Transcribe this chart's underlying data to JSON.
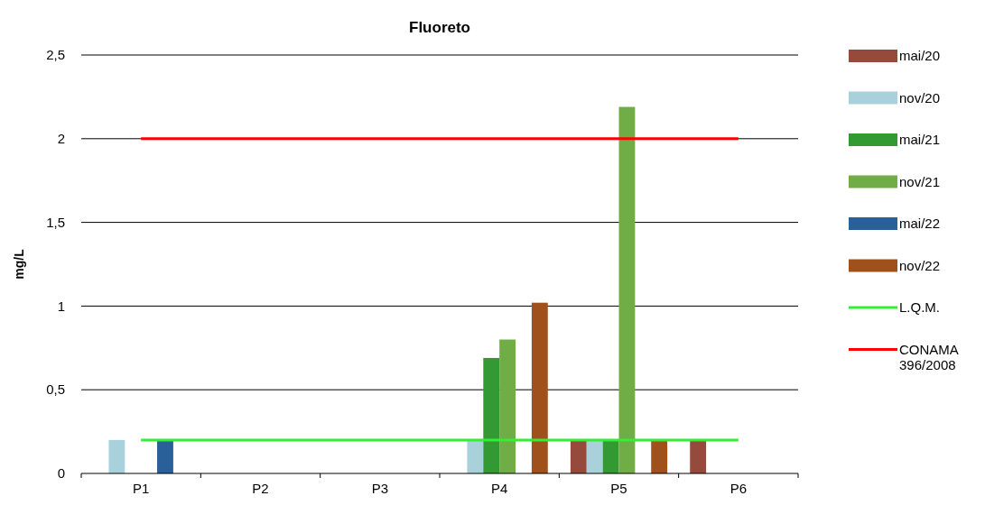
{
  "chart_data": {
    "type": "bar",
    "title": "Fluoreto",
    "ylabel": "mg/L",
    "categories": [
      "P1",
      "P2",
      "P3",
      "P4",
      "P5",
      "P6"
    ],
    "series": [
      {
        "name": "mai/20",
        "color": "#954a3c",
        "values": [
          null,
          null,
          null,
          null,
          0.2,
          0.2
        ]
      },
      {
        "name": "nov/20",
        "color": "#a9d1dc",
        "values": [
          0.2,
          null,
          null,
          0.2,
          0.2,
          null
        ]
      },
      {
        "name": "mai/21",
        "color": "#339933",
        "values": [
          null,
          null,
          null,
          0.69,
          0.2,
          null
        ]
      },
      {
        "name": "nov/21",
        "color": "#70ad47",
        "values": [
          null,
          null,
          null,
          0.8,
          2.19,
          null
        ]
      },
      {
        "name": "mai/22",
        "color": "#2a6099",
        "values": [
          0.2,
          null,
          null,
          null,
          null,
          null
        ]
      },
      {
        "name": "nov/22",
        "color": "#a0501a",
        "values": [
          null,
          null,
          null,
          1.02,
          0.2,
          null
        ]
      },
      {
        "name": "L.Q.M.",
        "type": "line",
        "color": "#33ee33",
        "values": [
          0.2,
          0.2,
          0.2,
          0.2,
          0.2,
          0.2
        ]
      },
      {
        "name": "CONAMA 396/2008",
        "type": "line",
        "color": "#ff0000",
        "values": [
          2,
          2,
          2,
          2,
          2,
          2
        ]
      }
    ],
    "ylim": [
      0,
      2.5
    ],
    "yticks": [
      0,
      {
        "value": 0.5,
        "label": "0,5"
      },
      1,
      {
        "value": 1.5,
        "label": "1,5"
      },
      2,
      {
        "value": 2.5,
        "label": "2,5"
      }
    ],
    "grid": "y",
    "legend": "right"
  }
}
